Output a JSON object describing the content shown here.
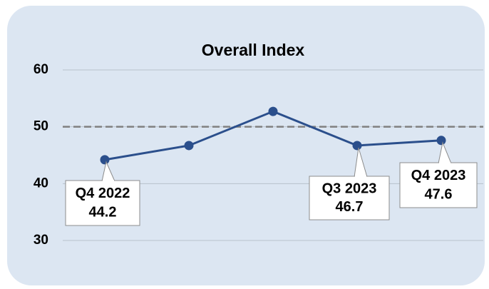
{
  "chart_data": {
    "type": "line",
    "title": "Overall Index",
    "categories": [
      "Q4 2022",
      null,
      null,
      "Q3 2023",
      "Q4 2023"
    ],
    "series": [
      {
        "name": "Overall Index",
        "color": "#2b4f8c",
        "values": [
          44.2,
          46.7,
          52.7,
          46.7,
          47.6
        ]
      }
    ],
    "ylim": [
      30,
      60
    ],
    "yticks": [
      30,
      40,
      50,
      60
    ],
    "grid": true,
    "reference_line": 50
  }
}
